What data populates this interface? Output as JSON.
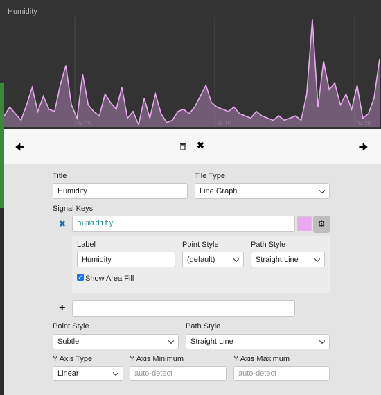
{
  "chart_data": {
    "type": "area",
    "title": "Humidity",
    "values": [
      10,
      18,
      12,
      6,
      20,
      36,
      14,
      28,
      16,
      14,
      38,
      56,
      20,
      8,
      48,
      20,
      14,
      10,
      30,
      22,
      16,
      36,
      8,
      14,
      2,
      26,
      8,
      30,
      12,
      4,
      6,
      14,
      16,
      12,
      18,
      28,
      38,
      22,
      18,
      16,
      14,
      18,
      12,
      10,
      8,
      14,
      10,
      8,
      6,
      10,
      6,
      8,
      10,
      6,
      30,
      98,
      18,
      60,
      34,
      40,
      20,
      30,
      16,
      38,
      8,
      12,
      26,
      62
    ],
    "color": "#e9a9f0",
    "ylim": [
      0,
      100
    ],
    "x_labels": [
      "04:05",
      "04:15",
      "04:30"
    ]
  },
  "form": {
    "title_label": "Title",
    "title_value": "Humidity",
    "tile_type_label": "Tile Type",
    "tile_type_value": "Line Graph",
    "signal_keys_label": "Signal Keys",
    "signal": {
      "key": "humidity",
      "color": "#eaa8ef",
      "label_label": "Label",
      "label_value": "Humidity",
      "point_style_label": "Point Style",
      "point_style_value": "(default)",
      "path_style_label": "Path Style",
      "path_style_value": "Straight Line",
      "area_fill_label": "Show Area Fill"
    },
    "point_style_label": "Point Style",
    "point_style_value": "Subtle",
    "path_style_label": "Path Style",
    "path_style_value": "Straight Line",
    "y_axis_type_label": "Y Axis Type",
    "y_axis_type_value": "Linear",
    "y_min_label": "Y Axis Minimum",
    "y_min_placeholder": "auto-detect",
    "y_max_label": "Y Axis Maximum",
    "y_max_placeholder": "auto-detect"
  }
}
